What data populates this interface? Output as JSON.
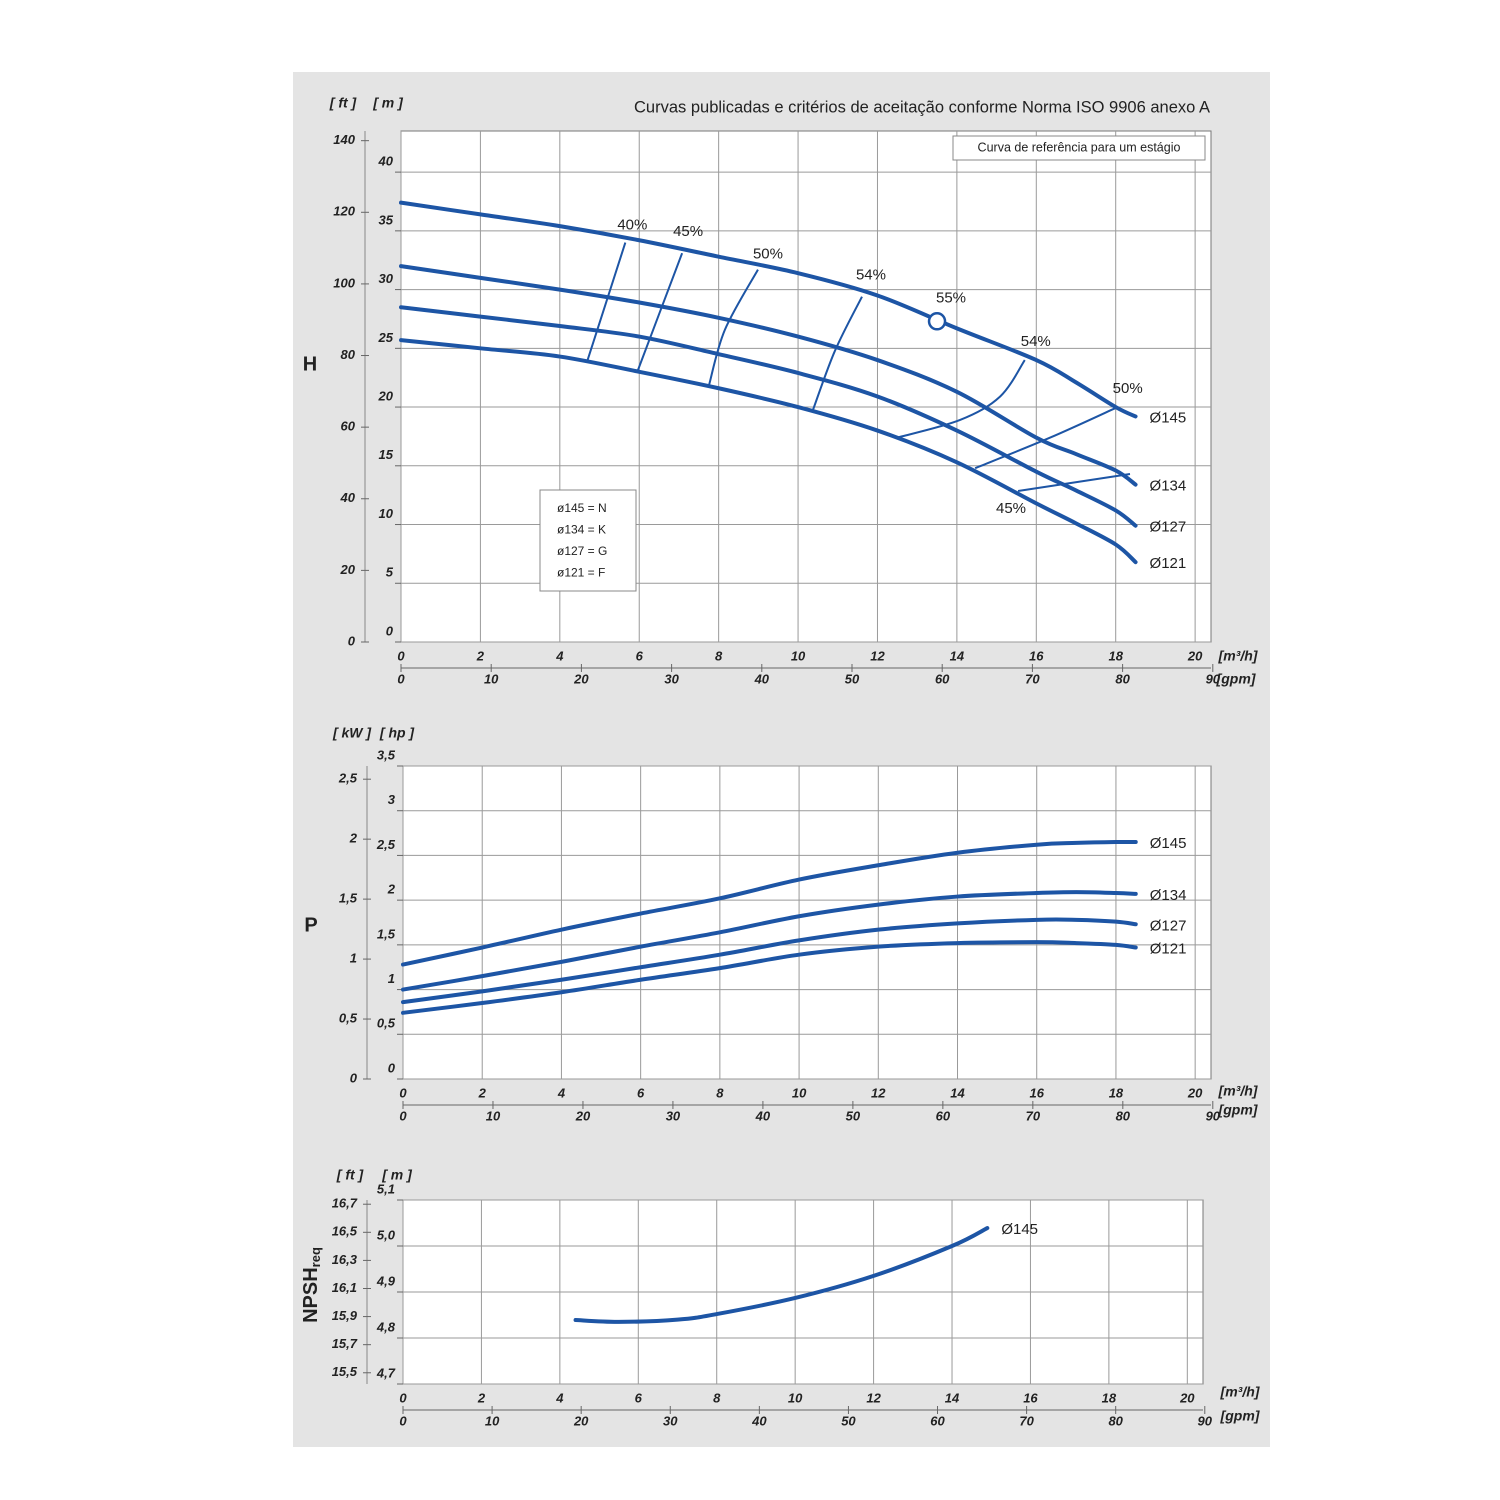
{
  "chart_data": [
    {
      "type": "line",
      "title": "Curvas publicadas e critérios de aceitação conforme Norma ISO 9906 anexo A",
      "note": "Curva de referência para um estágio",
      "code_legend": [
        "ø145 = N",
        "ø134 = K",
        "ø127 = G",
        "ø121 = F"
      ],
      "y_label": "H",
      "y_unit": "[ m ]",
      "y2_unit": "[ ft ]",
      "x_unit": "[m³/h]",
      "x2_unit": "[gpm]",
      "xlim": [
        0,
        20.4
      ],
      "xticks": [
        0,
        2,
        4,
        6,
        8,
        10,
        12,
        14,
        16,
        18,
        20
      ],
      "x2lim": [
        0,
        89.8
      ],
      "x2ticks": [
        0,
        10,
        20,
        30,
        40,
        50,
        60,
        70,
        80,
        90
      ],
      "ylim": [
        0,
        43.5
      ],
      "yticks": [
        0,
        5,
        10,
        15,
        20,
        25,
        30,
        35,
        40
      ],
      "y2lim": [
        0,
        142.7
      ],
      "y2ticks": [
        0,
        20,
        40,
        60,
        80,
        100,
        120,
        140
      ],
      "grid": true,
      "series": [
        {
          "name": "Ø145",
          "color": "#1d55a5",
          "x": [
            0,
            2,
            4,
            6,
            8,
            10,
            12,
            14,
            16,
            17,
            18,
            18.5
          ],
          "values": [
            37.4,
            36.4,
            35.4,
            34.2,
            32.8,
            31.4,
            29.5,
            26.7,
            24.0,
            22.1,
            20.0,
            19.2
          ]
        },
        {
          "name": "Ø134",
          "color": "#1d55a5",
          "x": [
            0,
            2,
            4,
            6,
            8,
            10,
            12,
            14,
            16,
            17,
            18,
            18.5
          ],
          "values": [
            32.0,
            31.0,
            30.0,
            28.9,
            27.6,
            26.0,
            24.0,
            21.3,
            17.4,
            16.0,
            14.6,
            13.4
          ]
        },
        {
          "name": "Ø127",
          "color": "#1d55a5",
          "x": [
            0,
            2,
            4,
            6,
            8,
            10,
            12,
            14,
            16,
            17,
            18,
            18.5
          ],
          "values": [
            28.5,
            27.7,
            26.9,
            26.0,
            24.5,
            22.9,
            20.9,
            18.0,
            14.5,
            12.9,
            11.2,
            9.9
          ]
        },
        {
          "name": "Ø121",
          "color": "#1d55a5",
          "x": [
            0,
            2,
            4,
            6,
            8,
            10,
            12,
            14,
            16,
            17,
            18,
            18.5
          ],
          "values": [
            25.7,
            25.0,
            24.3,
            23.0,
            21.6,
            20.0,
            18.0,
            15.3,
            11.8,
            10.1,
            8.3,
            6.8
          ]
        }
      ],
      "efficiency_lines": [
        {
          "name": "40%",
          "x": [
            4.68,
            5.65
          ],
          "values": [
            23.8,
            34.0
          ]
        },
        {
          "name": "45%",
          "x": [
            5.94,
            7.08
          ],
          "values": [
            22.9,
            33.1
          ]
        },
        {
          "name": "50%",
          "x": [
            7.76,
            8.16,
            8.99
          ],
          "values": [
            21.9,
            26.6,
            31.7
          ]
        },
        {
          "name": "54%",
          "x": [
            10.38,
            10.93,
            11.61
          ],
          "values": [
            19.8,
            24.8,
            29.4
          ]
        },
        {
          "name": "54%",
          "x": [
            12.5,
            14.08,
            15.09,
            15.71
          ],
          "values": [
            17.4,
            18.9,
            20.9,
            24.0
          ]
        },
        {
          "name": "50%",
          "x": [
            14.46,
            16.35,
            18.05
          ],
          "values": [
            14.8,
            17.4,
            20.0
          ]
        },
        {
          "name": "45%",
          "x": [
            15.54,
            18.36
          ],
          "values": [
            12.85,
            14.3
          ]
        }
      ],
      "best_point": {
        "label": "55%",
        "x": 13.5,
        "value": 27.3
      }
    },
    {
      "type": "line",
      "y_label": "P",
      "y_unit": "[ hp ]",
      "y2_unit": "[ kW ]",
      "x_unit": "[m³/h]",
      "x2_unit": "[gpm]",
      "xlim": [
        0,
        20.4
      ],
      "xticks": [
        0,
        2,
        4,
        6,
        8,
        10,
        12,
        14,
        16,
        18,
        20
      ],
      "x2lim": [
        0,
        89.8
      ],
      "x2ticks": [
        0,
        10,
        20,
        30,
        40,
        50,
        60,
        70,
        80,
        90
      ],
      "ylim": [
        0,
        3.5
      ],
      "yticks": [
        0,
        {
          "value": 0.5,
          "label": "0,5"
        },
        1,
        {
          "value": 1.5,
          "label": "1,5"
        },
        2,
        {
          "value": 2.5,
          "label": "2,5"
        },
        3,
        {
          "value": 3.5,
          "label": "3,5"
        }
      ],
      "y2lim": [
        0,
        2.61
      ],
      "y2ticks": [
        0,
        {
          "value": 0.5,
          "label": "0,5"
        },
        1,
        {
          "value": 1.5,
          "label": "1,5"
        },
        2,
        {
          "value": 2.5,
          "label": "2,5"
        }
      ],
      "grid": true,
      "series": [
        {
          "name": "Ø145",
          "color": "#1d55a5",
          "x": [
            0,
            2,
            4,
            6,
            8,
            10,
            12,
            14,
            16,
            17,
            18,
            18.5
          ],
          "values": [
            1.28,
            1.47,
            1.67,
            1.85,
            2.02,
            2.23,
            2.39,
            2.53,
            2.62,
            2.64,
            2.65,
            2.65
          ]
        },
        {
          "name": "Ø134",
          "color": "#1d55a5",
          "x": [
            0,
            2,
            4,
            6,
            8,
            10,
            12,
            14,
            16,
            17,
            18,
            18.5
          ],
          "values": [
            1.0,
            1.15,
            1.31,
            1.48,
            1.64,
            1.82,
            1.95,
            2.04,
            2.08,
            2.09,
            2.08,
            2.07
          ]
        },
        {
          "name": "Ø127",
          "color": "#1d55a5",
          "x": [
            0,
            2,
            4,
            6,
            8,
            10,
            12,
            14,
            16,
            17,
            18,
            18.5
          ],
          "values": [
            0.86,
            0.98,
            1.11,
            1.25,
            1.39,
            1.55,
            1.67,
            1.74,
            1.78,
            1.78,
            1.76,
            1.73
          ]
        },
        {
          "name": "Ø121",
          "color": "#1d55a5",
          "x": [
            0,
            2,
            4,
            6,
            8,
            10,
            12,
            14,
            16,
            17,
            18,
            18.5
          ],
          "values": [
            0.74,
            0.85,
            0.97,
            1.11,
            1.24,
            1.39,
            1.48,
            1.52,
            1.53,
            1.52,
            1.5,
            1.47
          ]
        }
      ]
    },
    {
      "type": "line",
      "y_label": "NPSH",
      "y_label_sub": "req",
      "y_unit": "[ m ]",
      "y2_unit": "[ ft ]",
      "x_unit": "[m³/h]",
      "x2_unit": "[gpm]",
      "xlim": [
        0,
        20.4
      ],
      "xticks": [
        0,
        2,
        4,
        6,
        8,
        10,
        12,
        14,
        16,
        18,
        20
      ],
      "x2lim": [
        0,
        89.8
      ],
      "x2ticks": [
        0,
        10,
        20,
        30,
        40,
        50,
        60,
        70,
        80,
        90
      ],
      "ylim": [
        4.7,
        5.1
      ],
      "yticks": [
        {
          "value": 4.7,
          "label": "4,7"
        },
        {
          "value": 4.8,
          "label": "4,8"
        },
        {
          "value": 4.9,
          "label": "4,9"
        },
        {
          "value": 5.0,
          "label": "5,0"
        },
        {
          "value": 5.1,
          "label": "5,1"
        }
      ],
      "y2lim": [
        15.42,
        16.73
      ],
      "y2ticks": [
        {
          "value": 15.5,
          "label": "15,5"
        },
        {
          "value": 15.7,
          "label": "15,7"
        },
        {
          "value": 15.9,
          "label": "15,9"
        },
        {
          "value": 16.1,
          "label": "16,1"
        },
        {
          "value": 16.3,
          "label": "16,3"
        },
        {
          "value": 16.5,
          "label": "16,5"
        },
        {
          "value": 16.7,
          "label": "16,7"
        }
      ],
      "grid": true,
      "series": [
        {
          "name": "Ø145",
          "color": "#1d55a5",
          "x": [
            4.4,
            5.5,
            7,
            8,
            10,
            12,
            14,
            14.9
          ],
          "values": [
            4.839,
            4.835,
            4.84,
            4.852,
            4.887,
            4.935,
            5.0,
            5.039
          ]
        }
      ]
    }
  ]
}
